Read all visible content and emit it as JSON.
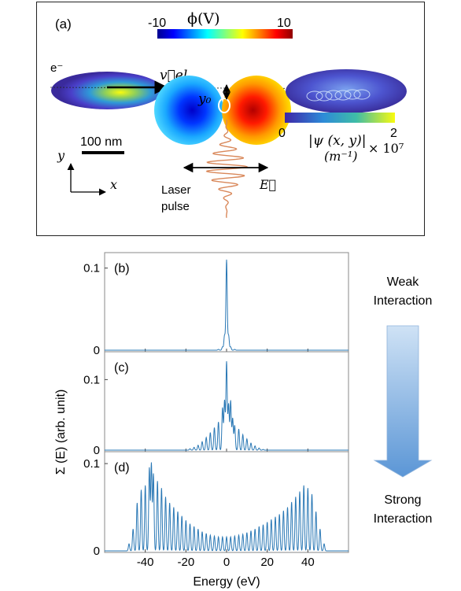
{
  "panel_a": {
    "tag": "(a)",
    "colorbar_phi": {
      "min_label": "-10",
      "max_label": "10",
      "title": "ϕ(V)"
    },
    "electron_label": "e⁻",
    "velocity_label": "v⃗el",
    "y0_label": "y₀",
    "scalebar_label": "100 nm",
    "axis_y": "y",
    "axis_x": "x",
    "laser_label_line1": "Laser",
    "laser_label_line2": "pulse",
    "efield_label": "E⃗",
    "colorbar_psi": {
      "min_label": "0",
      "max_label": "2",
      "title": "|ψ (x, y)|",
      "unit": "(m⁻¹)",
      "scale": "× 10⁷"
    }
  },
  "right_annotation": {
    "top_line1": "Weak",
    "top_line2": "Interaction",
    "bottom_line1": "Strong",
    "bottom_line2": "Interaction"
  },
  "colors": {
    "line": "#2a78b5",
    "laser": "#d9885a",
    "arrow_top": "#cfe2f5",
    "arrow_bottom": "#5b96d6"
  },
  "chart_data": {
    "type": "line",
    "xlabel": "Energy (eV)",
    "ylabel": "Σ (E) (arb. unit)",
    "xlim": [
      -60,
      60
    ],
    "xticks": [
      -40,
      -20,
      0,
      20,
      40
    ],
    "subplots": [
      {
        "tag": "(b)",
        "ylim": [
          0,
          0.115
        ],
        "ytick_labels": [
          "0",
          "0.1"
        ],
        "yticks": [
          0,
          0.1
        ],
        "peaks": [
          [
            -4,
            0.001
          ],
          [
            -2,
            0.004
          ],
          [
            -1,
            0.018
          ],
          [
            0,
            0.11
          ],
          [
            1,
            0.018
          ],
          [
            2,
            0.004
          ],
          [
            4,
            0.001
          ]
        ]
      },
      {
        "tag": "(c)",
        "ylim": [
          0,
          0.135
        ],
        "ytick_labels": [
          "0",
          "0.1"
        ],
        "yticks": [
          0,
          0.1
        ],
        "peaks": [
          [
            -18,
            0.002
          ],
          [
            -16,
            0.004
          ],
          [
            -14,
            0.007
          ],
          [
            -12,
            0.012
          ],
          [
            -10,
            0.018
          ],
          [
            -8,
            0.025
          ],
          [
            -6,
            0.032
          ],
          [
            -4,
            0.04
          ],
          [
            -2,
            0.06
          ],
          [
            -1,
            0.07
          ],
          [
            0,
            0.125
          ],
          [
            1,
            0.065
          ],
          [
            2,
            0.07
          ],
          [
            3,
            0.045
          ],
          [
            4,
            0.035
          ],
          [
            6,
            0.03
          ],
          [
            8,
            0.022
          ],
          [
            10,
            0.016
          ],
          [
            12,
            0.01
          ],
          [
            14,
            0.006
          ],
          [
            16,
            0.003
          ],
          [
            18,
            0.001
          ]
        ]
      },
      {
        "tag": "(d)",
        "ylim": [
          0,
          0.11
        ],
        "ytick_labels": [
          "0",
          "0.1"
        ],
        "yticks": [
          0,
          0.1
        ],
        "peaks": [
          [
            -48,
            0.008
          ],
          [
            -46,
            0.025
          ],
          [
            -44,
            0.055
          ],
          [
            -42,
            0.07
          ],
          [
            -40,
            0.075
          ],
          [
            -38,
            0.095
          ],
          [
            -37,
            0.1
          ],
          [
            -36,
            0.088
          ],
          [
            -34,
            0.08
          ],
          [
            -32,
            0.072
          ],
          [
            -30,
            0.062
          ],
          [
            -28,
            0.055
          ],
          [
            -26,
            0.05
          ],
          [
            -24,
            0.045
          ],
          [
            -22,
            0.04
          ],
          [
            -20,
            0.035
          ],
          [
            -18,
            0.031
          ],
          [
            -16,
            0.028
          ],
          [
            -14,
            0.025
          ],
          [
            -12,
            0.022
          ],
          [
            -10,
            0.02
          ],
          [
            -8,
            0.018
          ],
          [
            -6,
            0.017
          ],
          [
            -4,
            0.016
          ],
          [
            -2,
            0.016
          ],
          [
            0,
            0.016
          ],
          [
            2,
            0.016
          ],
          [
            4,
            0.017
          ],
          [
            6,
            0.018
          ],
          [
            8,
            0.019
          ],
          [
            10,
            0.021
          ],
          [
            12,
            0.023
          ],
          [
            14,
            0.025
          ],
          [
            16,
            0.028
          ],
          [
            18,
            0.03
          ],
          [
            20,
            0.033
          ],
          [
            22,
            0.036
          ],
          [
            24,
            0.039
          ],
          [
            26,
            0.042
          ],
          [
            28,
            0.046
          ],
          [
            30,
            0.05
          ],
          [
            32,
            0.056
          ],
          [
            34,
            0.062
          ],
          [
            36,
            0.068
          ],
          [
            38,
            0.075
          ],
          [
            40,
            0.072
          ],
          [
            42,
            0.065
          ],
          [
            44,
            0.045
          ],
          [
            46,
            0.025
          ],
          [
            48,
            0.008
          ]
        ]
      }
    ]
  }
}
